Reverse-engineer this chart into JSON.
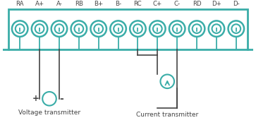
{
  "labels": [
    "RA",
    "A+",
    "A-",
    "RB",
    "B+",
    "B-",
    "RC",
    "C+",
    "C-",
    "RD",
    "D+",
    "D-"
  ],
  "teal": "#3aada8",
  "dark": "#444444",
  "bg": "#ffffff",
  "figsize": [
    3.63,
    1.77
  ],
  "dpi": 100,
  "n_terminals": 12,
  "voltage_label": "Voltage transmitter",
  "current_label": "Current transmitter"
}
